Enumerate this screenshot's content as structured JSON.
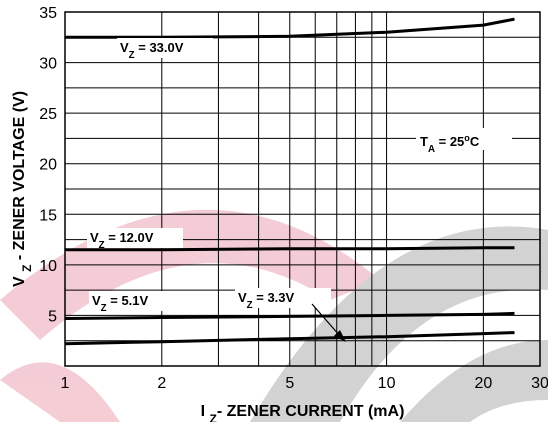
{
  "chart_data": {
    "type": "line",
    "xlabel": [
      {
        "t": "I "
      },
      {
        "t": "Z",
        "sub": true
      },
      {
        "t": "- ZENER CURRENT (mA)"
      }
    ],
    "ylabel": [
      {
        "t": "V "
      },
      {
        "t": "Z",
        "sub": true
      },
      {
        "t": " - ZENER VOLTAGE (V)"
      }
    ],
    "xscale": "log",
    "xlim": [
      1,
      30
    ],
    "xticks": [
      1,
      2,
      5,
      10,
      20,
      30
    ],
    "xminorticks": [
      3,
      4,
      6,
      7,
      8,
      9
    ],
    "ylim": [
      0,
      35
    ],
    "yticks": [
      5,
      10,
      15,
      20,
      25,
      30,
      35
    ],
    "yminorticks": [
      2.5,
      7.5,
      12.5,
      17.5,
      22.5,
      27.5,
      32.5
    ],
    "grid": true,
    "x": [
      1,
      2,
      5,
      10,
      20,
      25
    ],
    "series": [
      {
        "name": [
          {
            "t": "V"
          },
          {
            "t": "Z",
            "sub": true
          },
          {
            "t": " = 33.0V"
          }
        ],
        "color": "#000000",
        "values": [
          32.5,
          32.5,
          32.6,
          33.0,
          33.7,
          34.3
        ]
      },
      {
        "name": [
          {
            "t": "V"
          },
          {
            "t": "Z",
            "sub": true
          },
          {
            "t": " = 12.0V"
          }
        ],
        "color": "#000000",
        "values": [
          11.5,
          11.5,
          11.6,
          11.6,
          11.7,
          11.7
        ]
      },
      {
        "name": [
          {
            "t": "V"
          },
          {
            "t": "Z",
            "sub": true
          },
          {
            "t": " = 5.1V"
          }
        ],
        "color": "#000000",
        "values": [
          4.7,
          4.8,
          4.9,
          5.0,
          5.1,
          5.2
        ]
      },
      {
        "name": [
          {
            "t": "V"
          },
          {
            "t": "Z",
            "sub": true
          },
          {
            "t": " = 3.3V"
          }
        ],
        "color": "#000000",
        "values": [
          2.2,
          2.4,
          2.7,
          2.9,
          3.2,
          3.3
        ]
      }
    ],
    "annotation": [
      {
        "t": "T"
      },
      {
        "t": "A",
        "sub": true
      },
      {
        "t": " = 25"
      },
      {
        "t": "o",
        "sup": true
      },
      {
        "t": "C"
      }
    ]
  }
}
